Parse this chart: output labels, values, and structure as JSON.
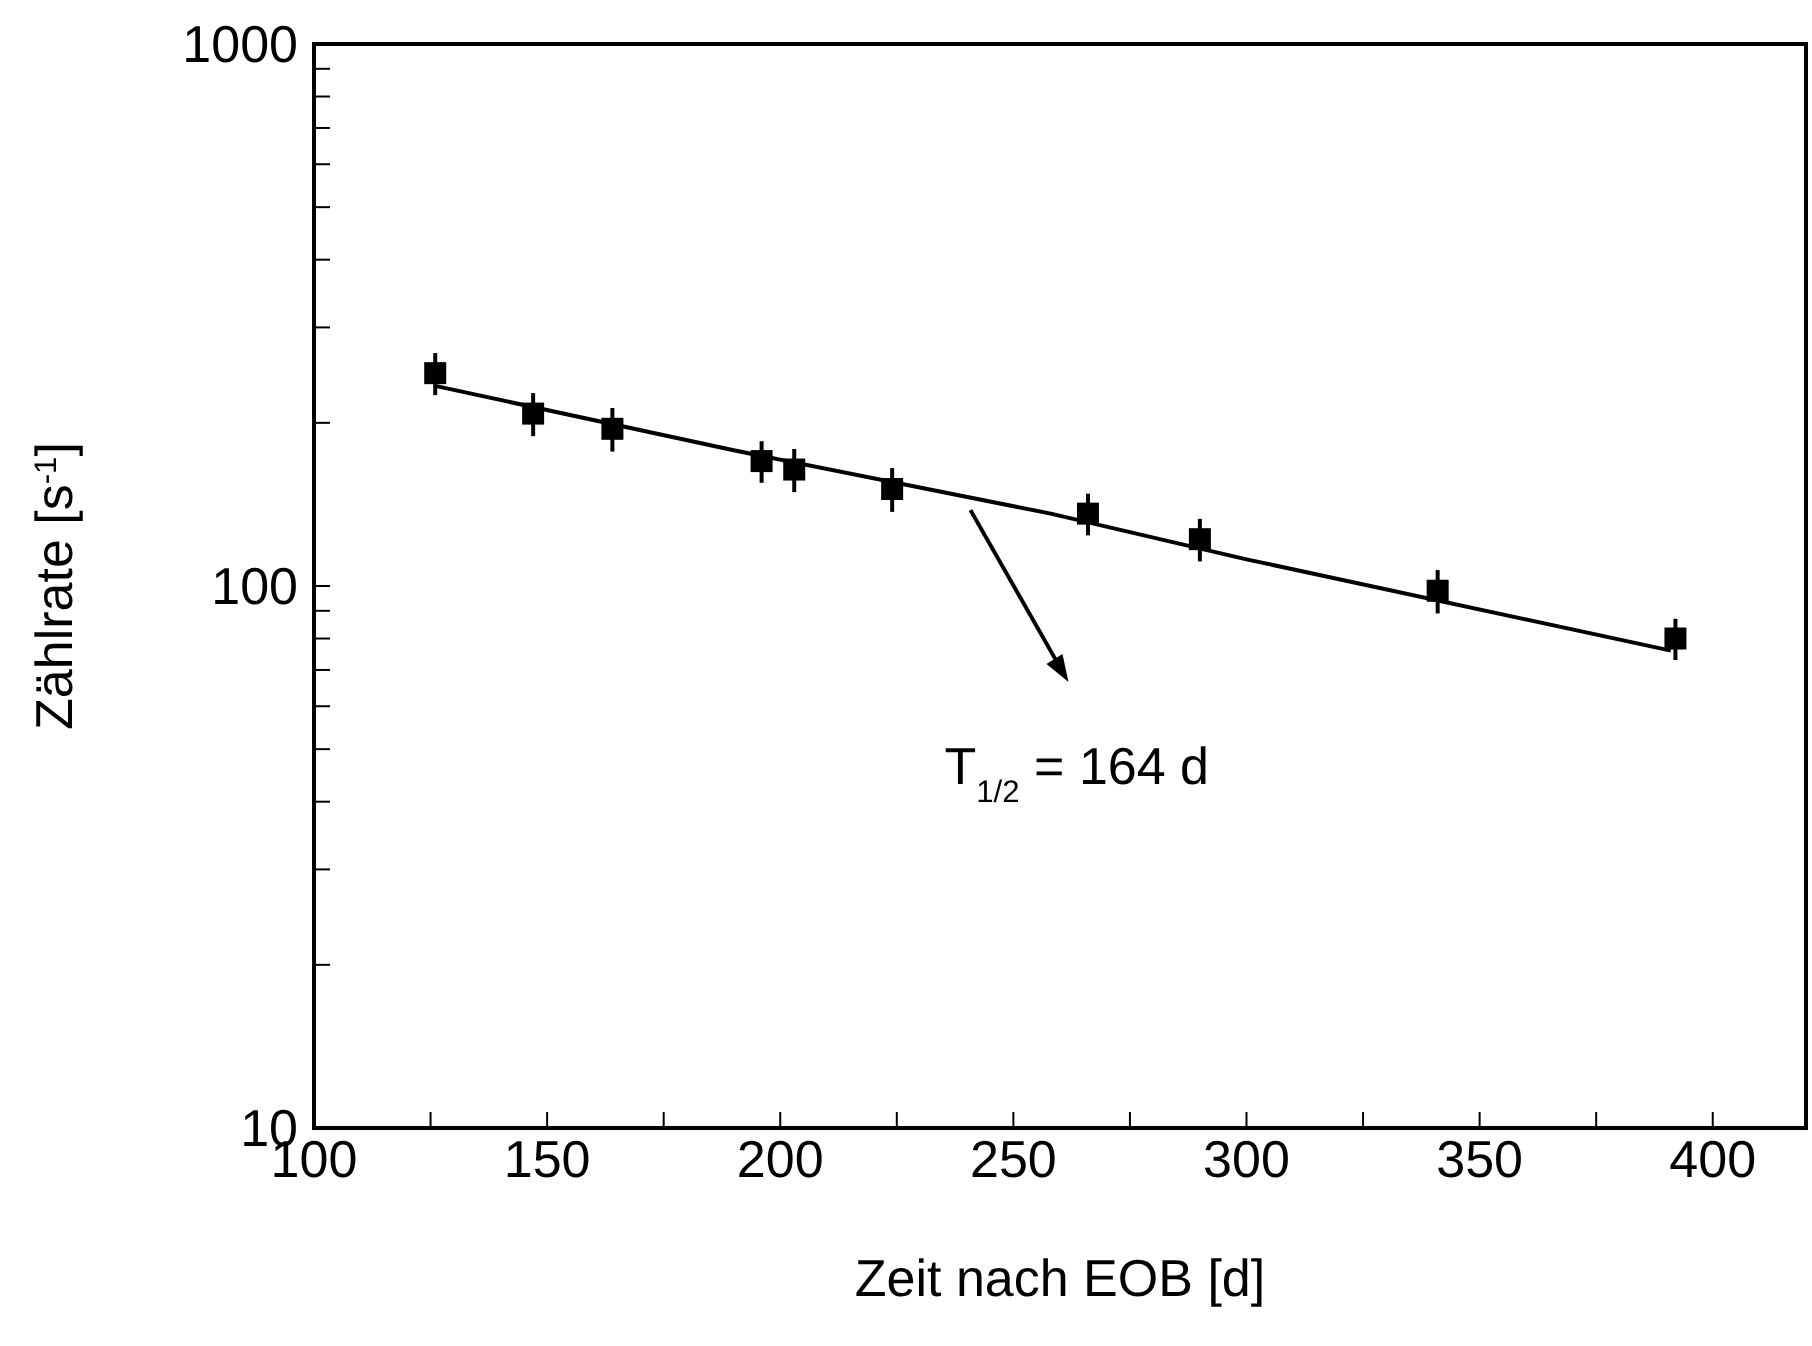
{
  "chart_data": {
    "type": "scatter",
    "xlabel": "Zeit nach EOB [d]",
    "ylabel": "Zählrate [s$^{-1}$]",
    "log": "y",
    "grid": false,
    "marker": "square",
    "xlim": [
      100,
      420
    ],
    "ylim": [
      10,
      1000
    ],
    "xticks": [
      100,
      {
        "value": 125,
        "label": null
      },
      150,
      {
        "value": 175,
        "label": null
      },
      200,
      {
        "value": 225,
        "label": null
      },
      250,
      {
        "value": 275,
        "label": null
      },
      300,
      {
        "value": 325,
        "label": null
      },
      350,
      {
        "value": 375,
        "label": null
      },
      400
    ],
    "yticks": [
      10,
      {
        "value": 20,
        "label": null
      },
      {
        "value": 30,
        "label": null
      },
      {
        "value": 40,
        "label": null
      },
      {
        "value": 50,
        "label": null
      },
      {
        "value": 60,
        "label": null
      },
      {
        "value": 70,
        "label": null
      },
      {
        "value": 80,
        "label": null
      },
      {
        "value": 90,
        "label": null
      },
      100,
      {
        "value": 200,
        "label": null
      },
      {
        "value": 300,
        "label": null
      },
      {
        "value": 400,
        "label": null
      },
      {
        "value": 500,
        "label": null
      },
      {
        "value": 600,
        "label": null
      },
      {
        "value": 700,
        "label": null
      },
      {
        "value": 800,
        "label": null
      },
      {
        "value": 900,
        "label": null
      },
      1000
    ],
    "series": [
      {
        "color": "#000000",
        "x": [
          126,
          147,
          164,
          196,
          203,
          224,
          266,
          290,
          341,
          392
        ],
        "values": [
          247,
          208,
          195,
          170,
          164,
          151,
          136,
          122,
          98,
          80
        ],
        "errors": [
          22,
          19,
          18,
          15,
          15,
          14,
          12,
          11,
          9,
          7
        ]
      },
      {
        "type": "line",
        "color": "#000000",
        "line_style": "solid",
        "marker": "none",
        "x": [
          126,
          190,
          258,
          300,
          391
        ],
        "values": [
          234,
          178,
          136,
          112,
          76
        ]
      }
    ],
    "annotations": [
      "T$_{1/2}$ = 164 d"
    ]
  }
}
